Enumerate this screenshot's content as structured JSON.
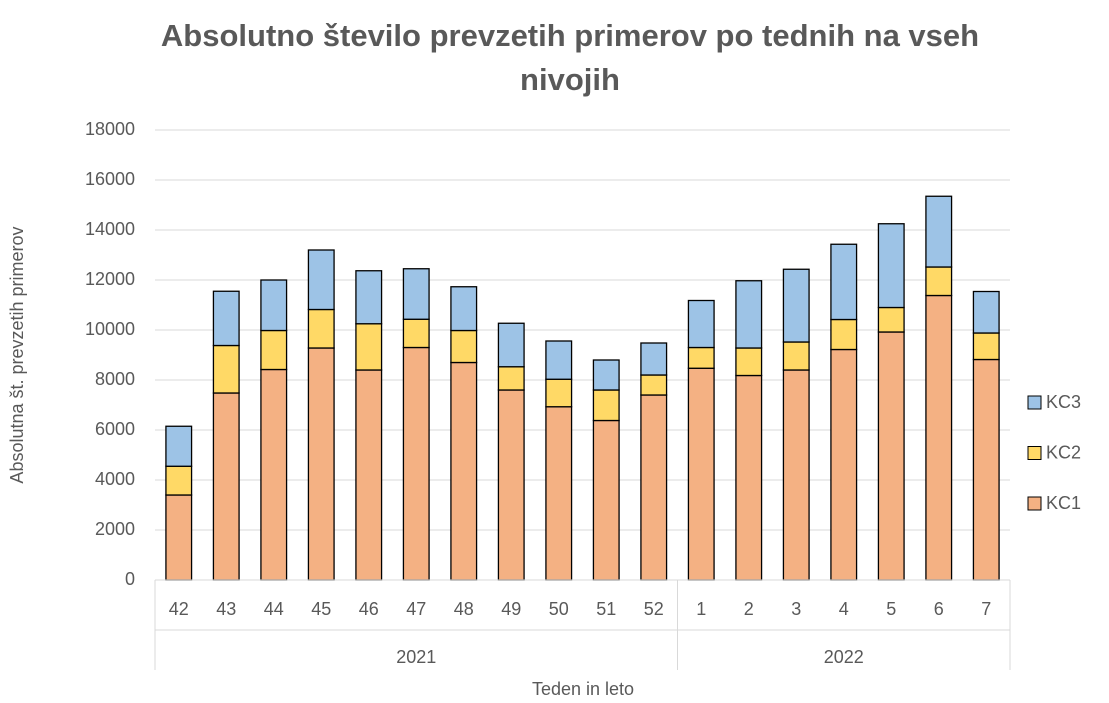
{
  "chart_data": {
    "type": "bar",
    "stacked": true,
    "title": "Absolutno število prevzetih primerov po tednih na vseh nivojih",
    "x_label": "Teden in leto",
    "y_label": "Absolutna št. prevzetih primerov",
    "category_groups": [
      {
        "label": "2021",
        "categories": [
          "42",
          "43",
          "44",
          "45",
          "46",
          "47",
          "48",
          "49",
          "50",
          "51",
          "52"
        ]
      },
      {
        "label": "2022",
        "categories": [
          "1",
          "2",
          "3",
          "4",
          "5",
          "6",
          "7"
        ]
      }
    ],
    "series": [
      {
        "name": "KC1",
        "color": "#f4b183",
        "values": [
          3400,
          7480,
          8420,
          9280,
          8400,
          9300,
          8700,
          7600,
          6930,
          6380,
          7400,
          8470,
          8180,
          8400,
          9220,
          9920,
          11380,
          8820
        ]
      },
      {
        "name": "KC2",
        "color": "#ffd966",
        "values": [
          1150,
          1900,
          1560,
          1540,
          1850,
          1130,
          1280,
          930,
          1100,
          1220,
          800,
          830,
          1100,
          1120,
          1200,
          980,
          1140,
          1060
        ]
      },
      {
        "name": "KC3",
        "color": "#9dc3e6",
        "values": [
          1600,
          2170,
          2020,
          2380,
          2120,
          2020,
          1750,
          1740,
          1530,
          1200,
          1280,
          1880,
          2690,
          2910,
          3010,
          3350,
          2830,
          1660
        ]
      }
    ],
    "ylim": [
      0,
      18000
    ],
    "yticks": [
      0,
      2000,
      4000,
      6000,
      8000,
      10000,
      12000,
      14000,
      16000,
      18000
    ],
    "grid": true,
    "legend": "right"
  }
}
